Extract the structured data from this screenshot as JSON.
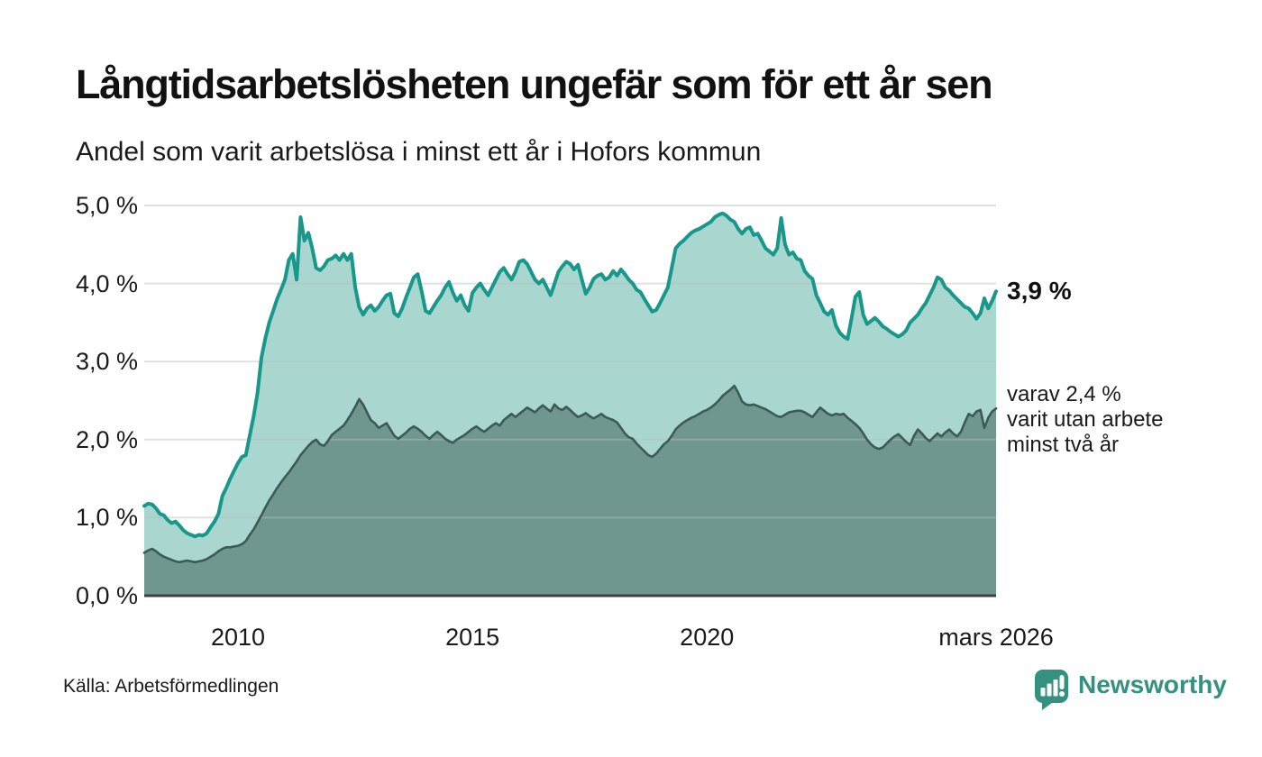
{
  "header": {
    "title": "Långtidsarbetslösheten ungefär som för ett år sen",
    "subtitle": "Andel som varit arbetslösa i minst ett år i Hofors kommun"
  },
  "annotations": {
    "latest_value": "3,9 %",
    "secondary_line1": "varav 2,4 %",
    "secondary_line2": "varit utan arbete",
    "secondary_line3": "minst två år"
  },
  "footer": {
    "source": "Källa: Arbetsförmedlingen",
    "brand": "Newsworthy"
  },
  "colors": {
    "series1_line": "#17988a",
    "series1_fill": "#a9d7d0",
    "series2_line": "#3d5a56",
    "series2_fill": "#6f968f",
    "gridline": "#b9bdbd",
    "baseline": "#3e3e3e",
    "brand_teal": "#34917f"
  },
  "chart_data": {
    "type": "area",
    "title": "Långtidsarbetslösheten ungefär som för ett år sen",
    "subtitle": "Andel som varit arbetslösa i minst ett år i Hofors kommun",
    "unit": "percent",
    "x_start_year": 2008,
    "x_resolution": "monthly",
    "x_end_label": "mars 2026",
    "ylim": [
      0,
      5
    ],
    "grid": true,
    "y_tick_values": [
      5,
      4,
      3,
      2,
      1,
      0
    ],
    "y_tick_labels": [
      "5,0 %",
      "4,0 %",
      "3,0 %",
      "2,0 %",
      "1,0 %",
      "0,0 %"
    ],
    "x_tick_years": [
      2010,
      2015,
      2020,
      2026.17
    ],
    "x_tick_labels": [
      "2010",
      "2015",
      "2020",
      "mars 2026"
    ],
    "series": [
      {
        "name": "Andel arbetslösa minst ett år",
        "latest": 3.9,
        "line_color": "#17988a",
        "fill_color": "#a9d7d0",
        "values": [
          1.15,
          1.18,
          1.17,
          1.12,
          1.05,
          1.03,
          0.97,
          0.93,
          0.95,
          0.9,
          0.84,
          0.8,
          0.78,
          0.76,
          0.78,
          0.77,
          0.8,
          0.88,
          0.95,
          1.05,
          1.28,
          1.38,
          1.5,
          1.6,
          1.7,
          1.78,
          1.8,
          2.05,
          2.3,
          2.6,
          3.05,
          3.3,
          3.5,
          3.65,
          3.8,
          3.92,
          4.05,
          4.3,
          4.38,
          4.05,
          4.85,
          4.55,
          4.65,
          4.45,
          4.2,
          4.17,
          4.22,
          4.3,
          4.32,
          4.36,
          4.3,
          4.38,
          4.3,
          4.38,
          3.95,
          3.7,
          3.6,
          3.68,
          3.72,
          3.65,
          3.7,
          3.78,
          3.85,
          3.87,
          3.62,
          3.58,
          3.68,
          3.82,
          3.95,
          4.08,
          4.12,
          3.9,
          3.65,
          3.62,
          3.7,
          3.78,
          3.85,
          3.95,
          4.02,
          3.88,
          3.78,
          3.85,
          3.72,
          3.65,
          3.88,
          3.95,
          4.0,
          3.92,
          3.85,
          3.95,
          4.05,
          4.15,
          4.2,
          4.12,
          4.05,
          4.15,
          4.28,
          4.3,
          4.25,
          4.15,
          4.05,
          4.0,
          4.05,
          3.95,
          3.85,
          4.0,
          4.15,
          4.22,
          4.28,
          4.25,
          4.18,
          4.24,
          4.05,
          3.87,
          3.95,
          4.06,
          4.1,
          4.12,
          4.05,
          4.08,
          4.16,
          4.1,
          4.18,
          4.12,
          4.05,
          4.0,
          3.92,
          3.89,
          3.8,
          3.72,
          3.64,
          3.66,
          3.75,
          3.85,
          3.95,
          4.2,
          4.45,
          4.51,
          4.55,
          4.6,
          4.65,
          4.68,
          4.7,
          4.73,
          4.76,
          4.79,
          4.85,
          4.88,
          4.9,
          4.87,
          4.82,
          4.79,
          4.7,
          4.64,
          4.7,
          4.72,
          4.62,
          4.64,
          4.55,
          4.45,
          4.41,
          4.37,
          4.45,
          4.84,
          4.5,
          4.37,
          4.4,
          4.32,
          4.3,
          4.16,
          4.1,
          4.06,
          3.85,
          3.75,
          3.64,
          3.6,
          3.66,
          3.46,
          3.37,
          3.32,
          3.29,
          3.55,
          3.83,
          3.89,
          3.6,
          3.48,
          3.52,
          3.56,
          3.51,
          3.45,
          3.42,
          3.38,
          3.35,
          3.32,
          3.35,
          3.4,
          3.5,
          3.55,
          3.6,
          3.68,
          3.75,
          3.85,
          3.95,
          4.08,
          4.05,
          3.95,
          3.91,
          3.85,
          3.8,
          3.75,
          3.7,
          3.68,
          3.62,
          3.55,
          3.62,
          3.81,
          3.68,
          3.78,
          3.9
        ]
      },
      {
        "name": "Andel arbetslösa minst två år",
        "latest": 2.4,
        "line_color": "#3d5a56",
        "fill_color": "#6f968f",
        "values": [
          0.55,
          0.58,
          0.6,
          0.57,
          0.53,
          0.5,
          0.48,
          0.46,
          0.44,
          0.43,
          0.44,
          0.45,
          0.44,
          0.43,
          0.44,
          0.45,
          0.47,
          0.5,
          0.53,
          0.57,
          0.6,
          0.62,
          0.62,
          0.63,
          0.64,
          0.66,
          0.7,
          0.78,
          0.85,
          0.94,
          1.03,
          1.13,
          1.22,
          1.3,
          1.38,
          1.45,
          1.52,
          1.58,
          1.65,
          1.72,
          1.8,
          1.86,
          1.92,
          1.97,
          2.0,
          1.94,
          1.92,
          1.98,
          2.06,
          2.1,
          2.14,
          2.18,
          2.25,
          2.33,
          2.42,
          2.52,
          2.45,
          2.35,
          2.25,
          2.21,
          2.15,
          2.18,
          2.21,
          2.13,
          2.05,
          2.01,
          2.05,
          2.09,
          2.14,
          2.17,
          2.14,
          2.1,
          2.05,
          2.01,
          2.06,
          2.1,
          2.06,
          2.01,
          1.98,
          1.96,
          2.0,
          2.03,
          2.06,
          2.1,
          2.14,
          2.17,
          2.13,
          2.1,
          2.14,
          2.18,
          2.21,
          2.18,
          2.25,
          2.29,
          2.33,
          2.29,
          2.33,
          2.37,
          2.41,
          2.38,
          2.35,
          2.4,
          2.44,
          2.4,
          2.36,
          2.45,
          2.4,
          2.38,
          2.42,
          2.38,
          2.33,
          2.29,
          2.31,
          2.34,
          2.3,
          2.27,
          2.3,
          2.33,
          2.29,
          2.27,
          2.25,
          2.22,
          2.15,
          2.08,
          2.03,
          2.01,
          1.95,
          1.9,
          1.85,
          1.8,
          1.78,
          1.82,
          1.88,
          1.94,
          1.98,
          2.05,
          2.13,
          2.18,
          2.22,
          2.25,
          2.28,
          2.3,
          2.33,
          2.36,
          2.38,
          2.41,
          2.45,
          2.5,
          2.56,
          2.6,
          2.64,
          2.69,
          2.6,
          2.49,
          2.45,
          2.44,
          2.45,
          2.43,
          2.41,
          2.39,
          2.36,
          2.33,
          2.3,
          2.29,
          2.32,
          2.35,
          2.36,
          2.37,
          2.37,
          2.35,
          2.32,
          2.29,
          2.35,
          2.41,
          2.37,
          2.33,
          2.31,
          2.33,
          2.32,
          2.33,
          2.28,
          2.24,
          2.2,
          2.15,
          2.08,
          2.0,
          1.94,
          1.9,
          1.88,
          1.9,
          1.95,
          2.0,
          2.04,
          2.07,
          2.02,
          1.97,
          1.93,
          2.05,
          2.13,
          2.08,
          2.02,
          1.98,
          2.03,
          2.08,
          2.04,
          2.09,
          2.13,
          2.08,
          2.04,
          2.1,
          2.22,
          2.33,
          2.3,
          2.36,
          2.38,
          2.15,
          2.28,
          2.36,
          2.4
        ]
      }
    ]
  }
}
